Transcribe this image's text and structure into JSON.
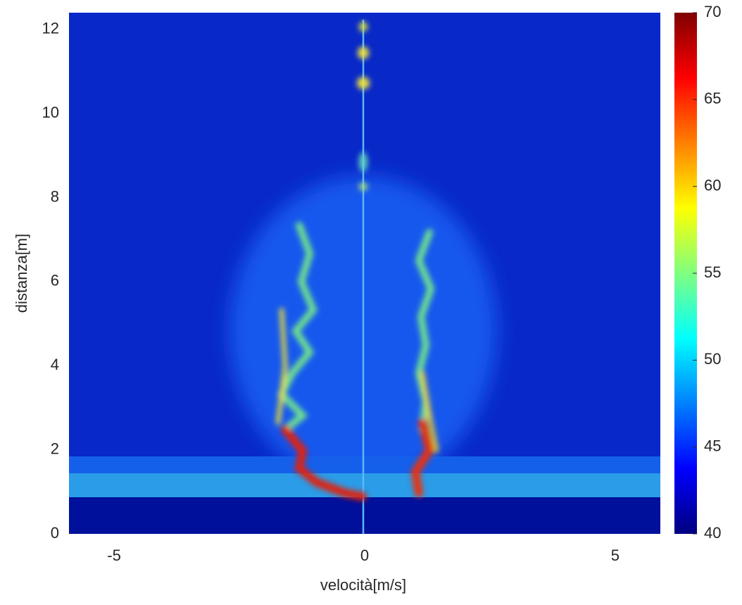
{
  "chart_data": {
    "type": "heatmap",
    "x_label": "velocità[m/s]",
    "y_label": "distanza[m]",
    "xlim": [
      -5.9,
      5.9
    ],
    "xticks": [
      -5,
      0,
      5
    ],
    "ylim": [
      0,
      12.4
    ],
    "yticks": [
      0,
      2,
      4,
      6,
      8,
      10,
      12
    ],
    "colormap": "jet",
    "colorbar": {
      "lim": [
        40,
        70
      ],
      "ticks": [
        40,
        45,
        50,
        55,
        60,
        65,
        70
      ]
    },
    "grid": false
  }
}
